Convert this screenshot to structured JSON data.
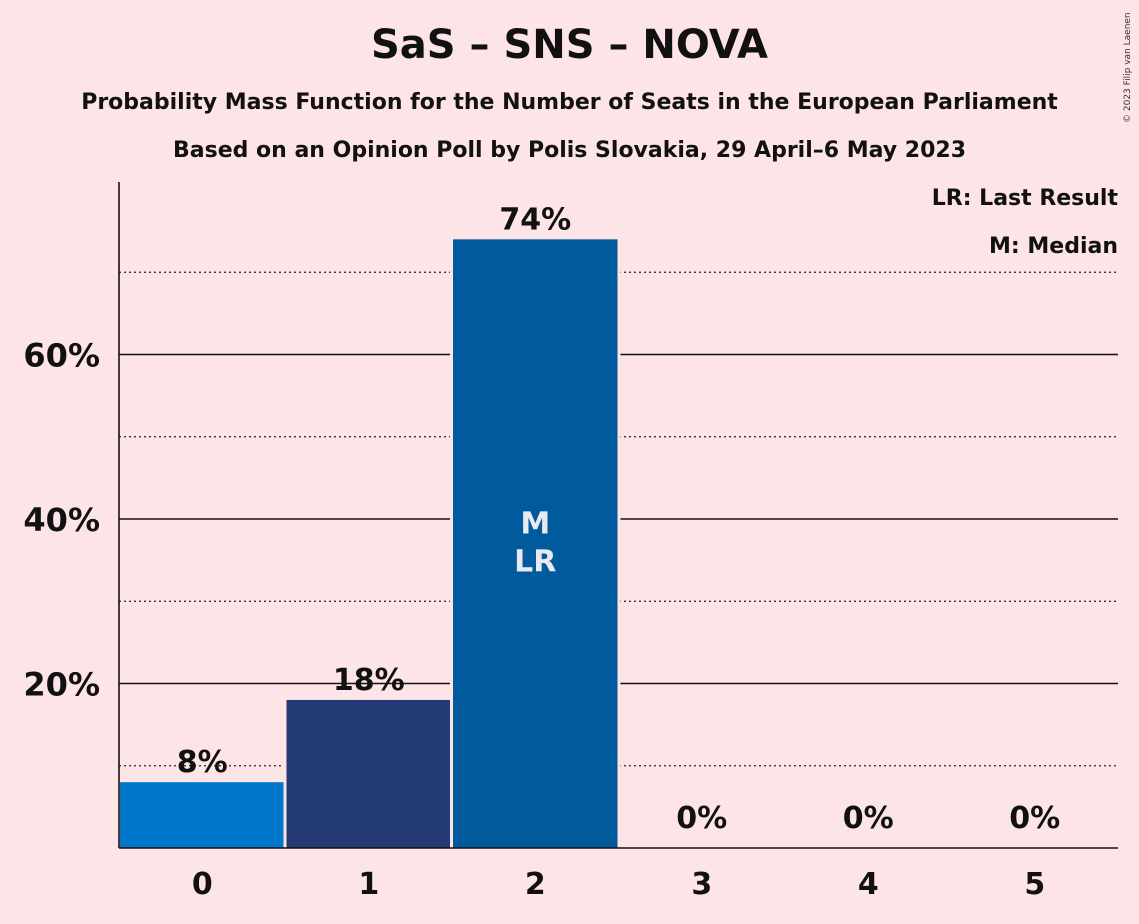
{
  "header": {
    "title": "SaS – SNS – NOVA",
    "subtitle": "Probability Mass Function for the Number of Seats in the European Parliament",
    "subtitle2": "Based on an Opinion Poll by Polis Slovakia, 29 April–6 May 2023",
    "copyright": "© 2023 Filip van Laenen"
  },
  "legend": {
    "last_result": "LR: Last Result",
    "median": "M: Median"
  },
  "chart_data": {
    "type": "bar",
    "categories": [
      "0",
      "1",
      "2",
      "3",
      "4",
      "5"
    ],
    "values": [
      8,
      18,
      74,
      0,
      0,
      0
    ],
    "value_labels": [
      "8%",
      "18%",
      "74%",
      "0%",
      "0%",
      "0%"
    ],
    "bar_colors": [
      "#0077c8",
      "#233a75",
      "#005a9c",
      "#0077c8",
      "#0077c8",
      "#0077c8"
    ],
    "bar_markers": [
      "",
      "",
      "M\nLR",
      "",
      "",
      ""
    ],
    "ylim": [
      0,
      80
    ],
    "yticks": [
      20,
      40,
      60
    ],
    "ytick_labels": [
      "20%",
      "40%",
      "60%"
    ],
    "minor_gridlines": [
      10,
      30,
      50,
      70
    ],
    "grid": true,
    "legend_placement": "top-right"
  }
}
